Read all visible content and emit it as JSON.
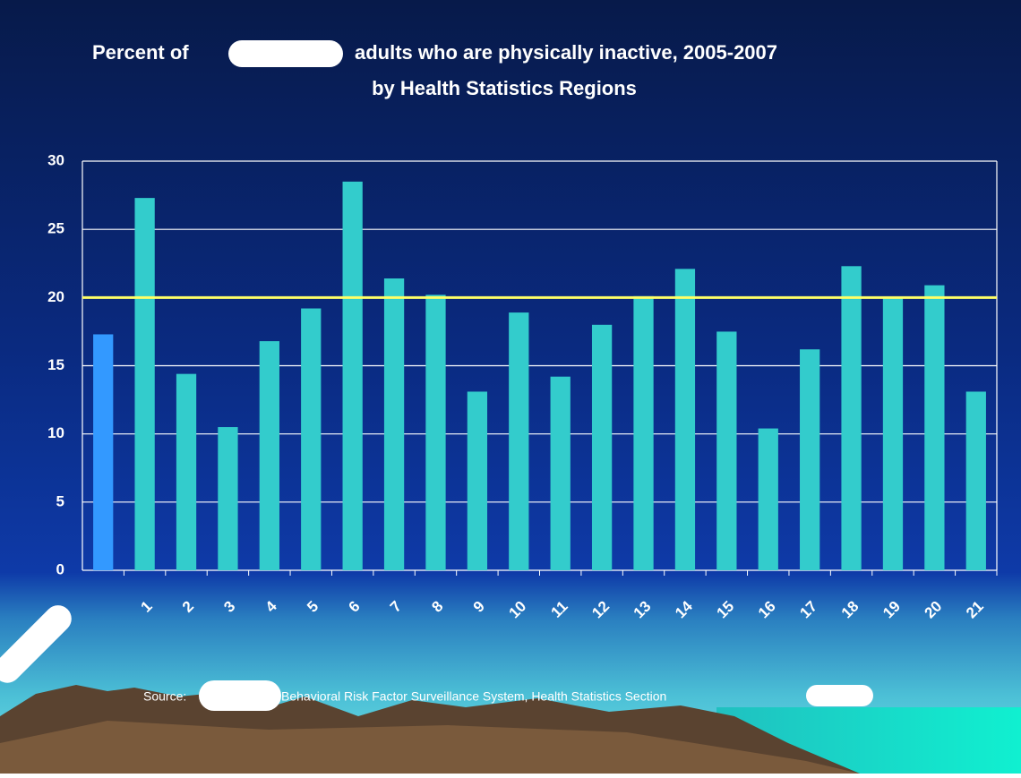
{
  "chart_data": {
    "type": "bar",
    "title_start": "Percent of",
    "title_end": "adults who are physically inactive, 2005-2007",
    "subtitle": "by Health Statistics Regions",
    "categories": [
      null,
      "1",
      "2",
      "3",
      "4",
      "5",
      "6",
      "7",
      "8",
      "9",
      "10",
      "11",
      "12",
      "13",
      "14",
      "15",
      "16",
      "17",
      "18",
      "19",
      "20",
      "21"
    ],
    "values": [
      17.3,
      27.3,
      14.4,
      10.5,
      16.8,
      19.2,
      28.5,
      21.4,
      20.2,
      13.1,
      18.9,
      14.2,
      18.0,
      20.1,
      22.1,
      17.5,
      10.4,
      16.2,
      22.3,
      20.0,
      20.9,
      13.1
    ],
    "colors": [
      "#3399ff",
      "#33cccc",
      "#33cccc",
      "#33cccc",
      "#33cccc",
      "#33cccc",
      "#33cccc",
      "#33cccc",
      "#33cccc",
      "#33cccc",
      "#33cccc",
      "#33cccc",
      "#33cccc",
      "#33cccc",
      "#33cccc",
      "#33cccc",
      "#33cccc",
      "#33cccc",
      "#33cccc",
      "#33cccc",
      "#33cccc",
      "#33cccc"
    ],
    "reference_line": 20,
    "reference_color": "#ffff66",
    "ylim": [
      0,
      30
    ],
    "yticks": [
      0,
      5,
      10,
      15,
      20,
      25,
      30
    ],
    "grid": true,
    "source_start": "Source:",
    "source_end": "Behavioral Risk Factor Surveillance System, Health Statistics Section"
  }
}
